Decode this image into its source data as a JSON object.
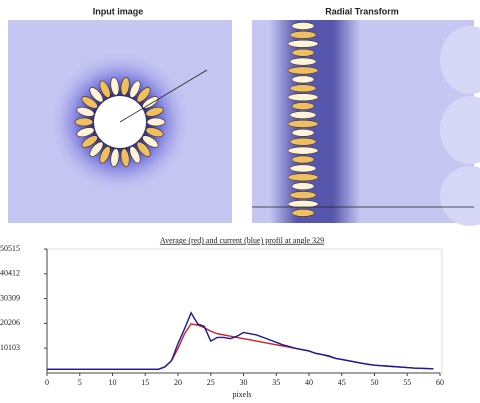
{
  "panels": [
    {
      "title": "Input image"
    },
    {
      "title": "Radial Transform"
    }
  ],
  "chart_data": {
    "type": "line",
    "title": "Average (red) and current (blue) profil at angle 329",
    "x_label": "pixels",
    "x": [
      0,
      1,
      2,
      3,
      4,
      5,
      6,
      7,
      8,
      9,
      10,
      11,
      12,
      13,
      14,
      15,
      16,
      17,
      18,
      19,
      20,
      21,
      22,
      23,
      24,
      25,
      26,
      27,
      28,
      29,
      30,
      31,
      32,
      33,
      34,
      35,
      36,
      37,
      38,
      39,
      40,
      41,
      42,
      43,
      44,
      45,
      46,
      47,
      48,
      49,
      50,
      51,
      52,
      53,
      54,
      55,
      56,
      57,
      58,
      59
    ],
    "series": [
      {
        "color": "#cc2222",
        "values": [
          1500,
          1500,
          1500,
          1500,
          1500,
          1500,
          1500,
          1500,
          1500,
          1500,
          1500,
          1500,
          1500,
          1500,
          1500,
          1500,
          1500,
          1500,
          2500,
          5000,
          10000,
          16000,
          20000,
          19500,
          18500,
          17000,
          16000,
          15500,
          15000,
          14500,
          14000,
          13500,
          13000,
          12500,
          12000,
          11500,
          11000,
          10500,
          10000,
          9500,
          9000,
          8000,
          7500,
          6800,
          6000,
          5500,
          5000,
          4500,
          4000,
          3500,
          3200,
          3000,
          2800,
          2600,
          2400,
          2200,
          2000,
          1900,
          1800,
          1700
        ]
      },
      {
        "color": "#1a1aa0",
        "values": [
          1500,
          1500,
          1500,
          1500,
          1500,
          1500,
          1500,
          1500,
          1500,
          1500,
          1500,
          1500,
          1500,
          1500,
          1500,
          1500,
          1500,
          1500,
          2500,
          5000,
          12000,
          18000,
          24500,
          20000,
          19000,
          13000,
          14500,
          14500,
          14000,
          15000,
          16500,
          16000,
          15500,
          14500,
          13500,
          12500,
          11500,
          10800,
          10000,
          9500,
          9000,
          8000,
          7500,
          7000,
          6000,
          5500,
          5000,
          4500,
          4000,
          3600,
          3200,
          3000,
          2800,
          2600,
          2400,
          2200,
          2000,
          1900,
          1800,
          1700
        ]
      }
    ],
    "xlim": [
      0,
      60
    ],
    "xticks": [
      0,
      5,
      10,
      15,
      20,
      25,
      30,
      35,
      40,
      45,
      50,
      55,
      60
    ],
    "ylim": [
      0,
      50515
    ],
    "yticks": [
      10103,
      20206,
      30309,
      40412,
      50515
    ]
  }
}
